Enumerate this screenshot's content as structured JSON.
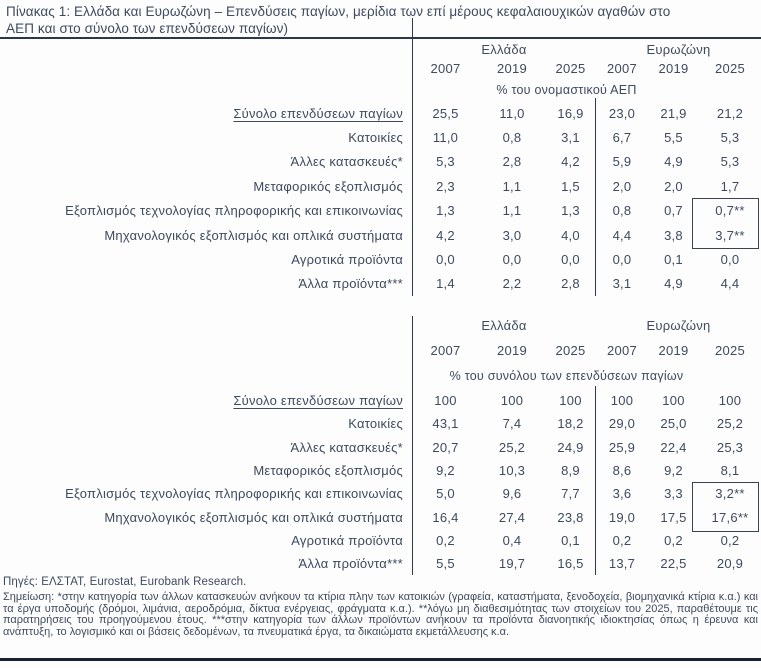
{
  "title": "Πίνακας 1: Ελλάδα και Ευρωζώνη – Επενδύσεις παγίων, μερίδια των επί μέρους κεφαλαιουχικών αγαθών στο ΑΕΠ και στο σύνολο των επενδύσεων παγίων)",
  "colors": {
    "text": "#3e4a5e",
    "rule": "#2c3749",
    "highlight_box_border": "#39424f",
    "bottom_rule": "#19222f"
  },
  "columns": {
    "group_headers": [
      "Ελλάδα",
      "Ευρωζώνη"
    ],
    "years": [
      "2007",
      "2019",
      "2025",
      "2007",
      "2019",
      "2025"
    ]
  },
  "tables": [
    {
      "unit": "% του ονομαστικού ΑΕΠ",
      "rows": [
        {
          "label": "Σύνολο επενδύσεων παγίων",
          "underline": true,
          "values": [
            "25,5",
            "11,0",
            "16,9",
            "23,0",
            "21,9",
            "21,2"
          ]
        },
        {
          "label": "Κατοικίες",
          "values": [
            "11,0",
            "0,8",
            "3,1",
            "6,7",
            "5,5",
            "5,3"
          ]
        },
        {
          "label": "Άλλες κατασκευές*",
          "values": [
            "5,3",
            "2,8",
            "4,2",
            "5,9",
            "4,9",
            "5,3"
          ]
        },
        {
          "label": "Μεταφορικός εξοπλισμός",
          "values": [
            "2,3",
            "1,1",
            "1,5",
            "2,0",
            "2,0",
            "1,7"
          ]
        },
        {
          "label": "Εξοπλισμός τεχνολογίας πληροφορικής και επικοινωνίας",
          "values": [
            "1,3",
            "1,1",
            "1,3",
            "0,8",
            "0,7",
            "0,7**"
          ]
        },
        {
          "label": "Μηχανολογικός εξοπλισμός και οπλικά συστήματα",
          "values": [
            "4,2",
            "3,0",
            "4,0",
            "4,4",
            "3,8",
            "3,7**"
          ]
        },
        {
          "label": "Αγροτικά προϊόντα",
          "values": [
            "0,0",
            "0,0",
            "0,0",
            "0,0",
            "0,1",
            "0,0"
          ]
        },
        {
          "label": "Άλλα προϊόντα***",
          "values": [
            "1,4",
            "2,2",
            "2,8",
            "3,1",
            "4,9",
            "4,4"
          ]
        }
      ]
    },
    {
      "unit": "% του συνόλου των επενδύσεων παγίων",
      "rows": [
        {
          "label": "Σύνολο επενδύσεων παγίων",
          "underline": true,
          "values": [
            "100",
            "100",
            "100",
            "100",
            "100",
            "100"
          ]
        },
        {
          "label": "Κατοικίες",
          "values": [
            "43,1",
            "7,4",
            "18,2",
            "29,0",
            "25,0",
            "25,2"
          ]
        },
        {
          "label": "Άλλες κατασκευές*",
          "values": [
            "20,7",
            "25,2",
            "24,9",
            "25,9",
            "22,4",
            "25,3"
          ]
        },
        {
          "label": "Μεταφορικός εξοπλισμός",
          "values": [
            "9,2",
            "10,3",
            "8,9",
            "8,6",
            "9,2",
            "8,1"
          ]
        },
        {
          "label": "Εξοπλισμός τεχνολογίας πληροφορικής και επικοινωνίας",
          "values": [
            "5,0",
            "9,6",
            "7,7",
            "3,6",
            "3,3",
            "3,2**"
          ]
        },
        {
          "label": "Μηχανολογικός εξοπλισμός και οπλικά συστήματα",
          "values": [
            "16,4",
            "27,4",
            "23,8",
            "19,0",
            "17,5",
            "17,6**"
          ]
        },
        {
          "label": "Αγροτικά προϊόντα",
          "values": [
            "0,2",
            "0,4",
            "0,1",
            "0,2",
            "0,2",
            "0,2"
          ]
        },
        {
          "label": "Άλλα προϊόντα***",
          "values": [
            "5,5",
            "19,7",
            "16,5",
            "13,7",
            "22,5",
            "20,9"
          ]
        }
      ]
    }
  ],
  "sources": "Πηγές: ΕΛΣΤΑΤ, Eurostat, Eurobank Research.",
  "note": "Σημείωση: *στην κατηγορία των άλλων κατασκευών ανήκουν τα κτίρια πλην των κατοικιών (γραφεία, καταστήματα, ξενοδοχεία, βιομηχανικά κτίρια κ.α.) και τα έργα υποδομής (δρόμοι, λιμάνια, αεροδρόμια, δίκτυα ενέργειας, φράγματα κ.α.). **λόγω μη διαθεσιμότητας των στοιχείων του 2025, παραθέτουμε τις παρατηρήσεις του προηγούμενου έτους. ***στην κατηγορία των άλλων προϊόντων ανήκουν τα προϊόντα διανοητικής ιδιοκτησίας όπως η έρευνα και ανάπτυξη, το λογισμικό και οι βάσεις δεδομένων, τα πνευματικά έργα, τα δικαιώματα εκμετάλλευσης κ.α."
}
